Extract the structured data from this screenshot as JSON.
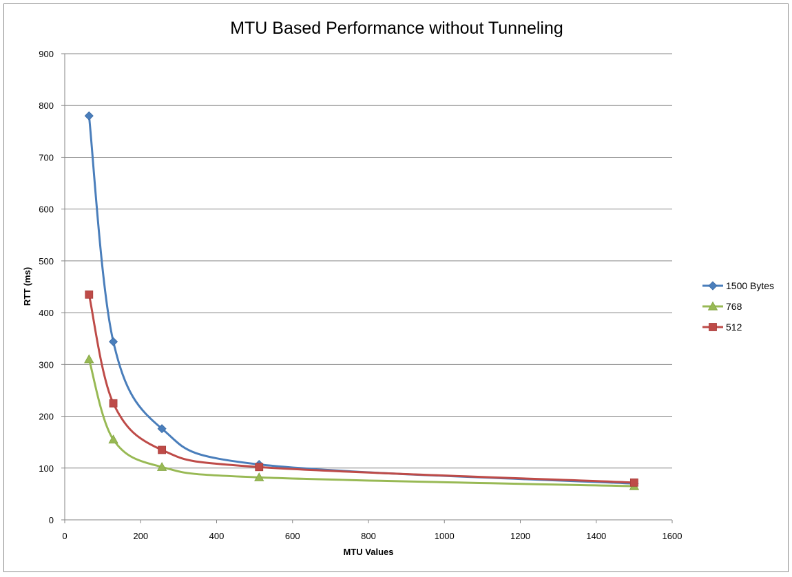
{
  "chart_data": {
    "type": "line",
    "title": "MTU Based Performance without Tunneling",
    "xlabel": "MTU Values",
    "ylabel": "RTT (ms)",
    "xlim": [
      0,
      1600
    ],
    "ylim": [
      0,
      900
    ],
    "x_ticks": [
      "0",
      "200",
      "400",
      "600",
      "800",
      "1000",
      "1200",
      "1400",
      "1600"
    ],
    "y_ticks": [
      "0",
      "100",
      "200",
      "300",
      "400",
      "500",
      "600",
      "700",
      "800",
      "900"
    ],
    "x_tick_values": [
      0,
      200,
      400,
      600,
      800,
      1000,
      1200,
      1400,
      1600
    ],
    "y_tick_values": [
      0,
      100,
      200,
      300,
      400,
      500,
      600,
      700,
      800,
      900
    ],
    "grid": "horizontal",
    "legend_position": "right",
    "smooth": true,
    "x": [
      64,
      128,
      256,
      512,
      1500
    ],
    "series": [
      {
        "name": "1500 Bytes",
        "values": [
          780,
          344,
          176,
          107,
          70
        ],
        "color": "#4a7ebb",
        "marker": "diamond"
      },
      {
        "name": "768",
        "values": [
          310,
          155,
          102,
          82,
          65
        ],
        "color": "#98b954",
        "marker": "triangle"
      },
      {
        "name": "512",
        "values": [
          435,
          225,
          135,
          102,
          72
        ],
        "color": "#be4b48",
        "marker": "square"
      }
    ]
  }
}
